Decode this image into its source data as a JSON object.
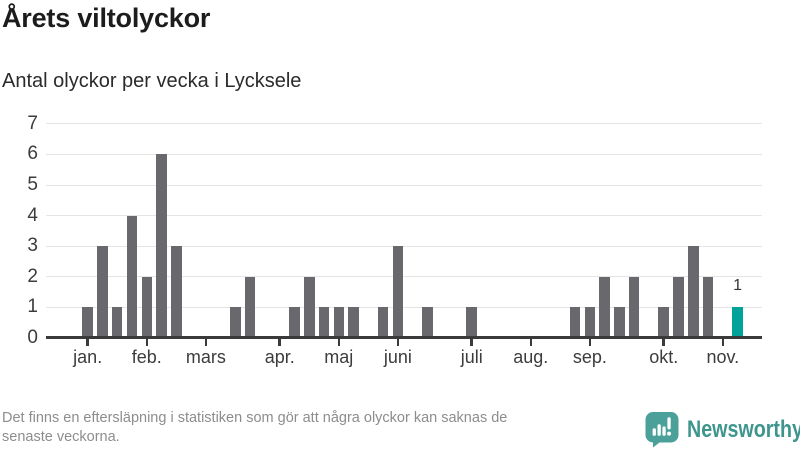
{
  "chart_data": {
    "type": "bar",
    "title": "Årets viltolyckor",
    "subtitle": "Antal olyckor per vecka i Lycksele",
    "x_unit": "vecka",
    "first_week": 1,
    "values": [
      1,
      3,
      1,
      4,
      2,
      6,
      3,
      0,
      0,
      0,
      1,
      2,
      0,
      0,
      1,
      2,
      1,
      1,
      1,
      0,
      1,
      3,
      0,
      1,
      0,
      0,
      1,
      0,
      0,
      0,
      0,
      0,
      0,
      1,
      1,
      2,
      1,
      2,
      0,
      1,
      2,
      3,
      2,
      0,
      1
    ],
    "ylim": [
      0,
      7
    ],
    "yticks": [
      0,
      1,
      2,
      3,
      4,
      5,
      6,
      7
    ],
    "grid": true,
    "month_ticks": [
      {
        "label": "jan.",
        "week": 1
      },
      {
        "label": "feb.",
        "week": 5
      },
      {
        "label": "mars",
        "week": 9
      },
      {
        "label": "apr.",
        "week": 14
      },
      {
        "label": "maj",
        "week": 18
      },
      {
        "label": "juni",
        "week": 22
      },
      {
        "label": "juli",
        "week": 27
      },
      {
        "label": "aug.",
        "week": 31
      },
      {
        "label": "sep.",
        "week": 35
      },
      {
        "label": "okt.",
        "week": 40
      },
      {
        "label": "nov.",
        "week": 44
      }
    ],
    "highlight_index": 44,
    "highlight_label": "1"
  },
  "footer": {
    "disclaimer_line1": "Det finns en eftersläpning i statistiken som gör att några olyckor kan saknas de",
    "disclaimer_line2": "senaste veckorna.",
    "brand_name": "Newsworthy"
  },
  "theme": {
    "bar_grey": "#69696d",
    "bar_teal": "#00a39a",
    "axis": "#3a3a3a",
    "axis_text": "#3c3c3c",
    "grid": "#e4e4e4",
    "title_text": "#1c1c1c",
    "subtitle_text": "#2b2b2b",
    "muted_text": "#8d8d8d",
    "brand_teal": "#3e958e",
    "logo_teal": "#4ba19a"
  }
}
